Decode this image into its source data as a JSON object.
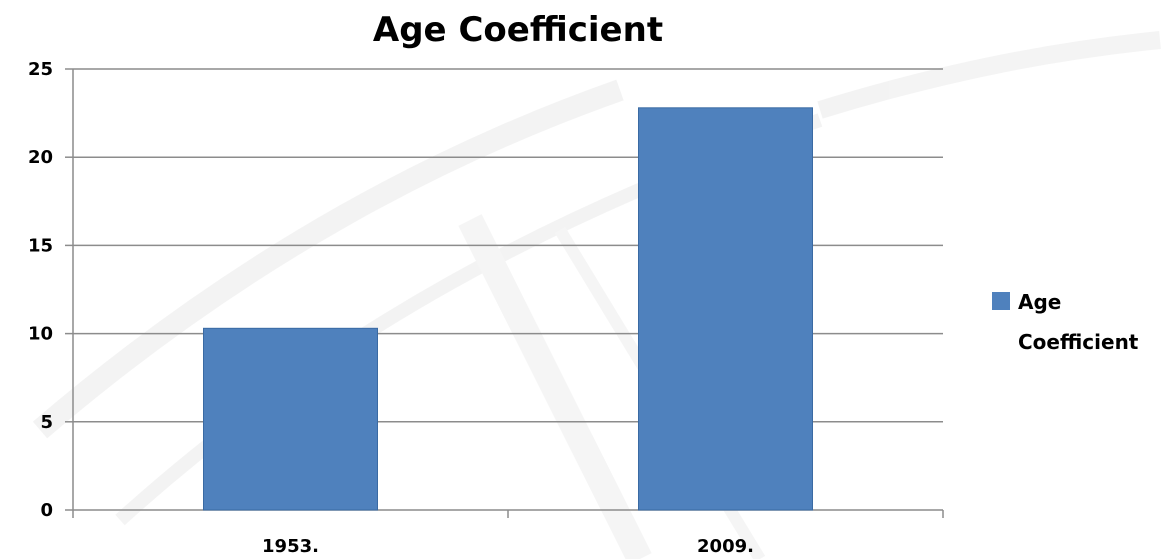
{
  "chart_data": {
    "type": "bar",
    "title": "Age Coefficient",
    "categories": [
      "1953.",
      "2009."
    ],
    "series": [
      {
        "name": "Age Coefficient",
        "values": [
          10.3,
          22.8
        ],
        "color": "#4F81BD"
      }
    ],
    "ylim": [
      0,
      25
    ],
    "yticks": [
      0,
      5,
      10,
      15,
      20,
      25
    ],
    "grid": true,
    "legend": {
      "position": "right",
      "lines": [
        "Age",
        "Coefficient"
      ]
    },
    "colors": {
      "bar": "#4F81BD",
      "bar_edge": "#3A6AA3",
      "grid": "#8C8C8C",
      "axis": "#8C8C8C",
      "text": "#000000",
      "background": "#FFFFFF"
    }
  }
}
